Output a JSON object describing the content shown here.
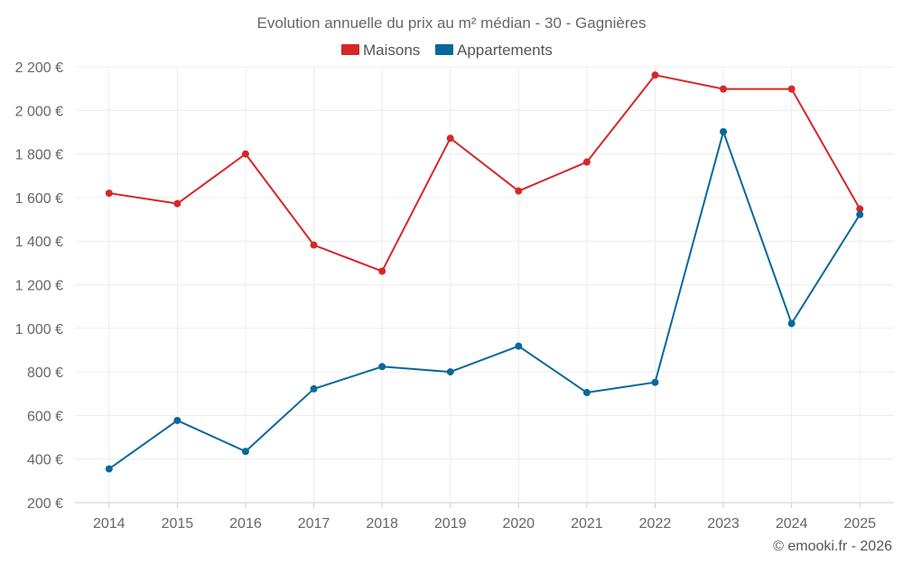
{
  "chart_data": {
    "type": "line",
    "title": "Evolution annuelle du prix au m² médian - 30 - Gagnières",
    "categories": [
      "2014",
      "2015",
      "2016",
      "2017",
      "2018",
      "2019",
      "2020",
      "2021",
      "2022",
      "2023",
      "2024",
      "2025"
    ],
    "ylim": [
      200,
      2200
    ],
    "yticks": [
      200,
      400,
      600,
      800,
      1000,
      1200,
      1400,
      1600,
      1800,
      2000,
      2200
    ],
    "ytick_labels": [
      "200 €",
      "400 €",
      "600 €",
      "800 €",
      "1 000 €",
      "1 200 €",
      "1 400 €",
      "1 600 €",
      "1 800 €",
      "2 000 €",
      "2 200 €"
    ],
    "grid": true,
    "legend_position": "top-center",
    "series": [
      {
        "name": "Maisons",
        "color": "#d62728",
        "values": [
          1620,
          1572,
          1800,
          1382,
          1262,
          1872,
          1630,
          1763,
          2162,
          2098,
          2098,
          1548
        ]
      },
      {
        "name": "Appartements",
        "color": "#08689b",
        "values": [
          355,
          577,
          435,
          722,
          824,
          800,
          918,
          705,
          752,
          1902,
          1022,
          1522
        ]
      }
    ],
    "credit": "© emooki.fr - 2026"
  }
}
